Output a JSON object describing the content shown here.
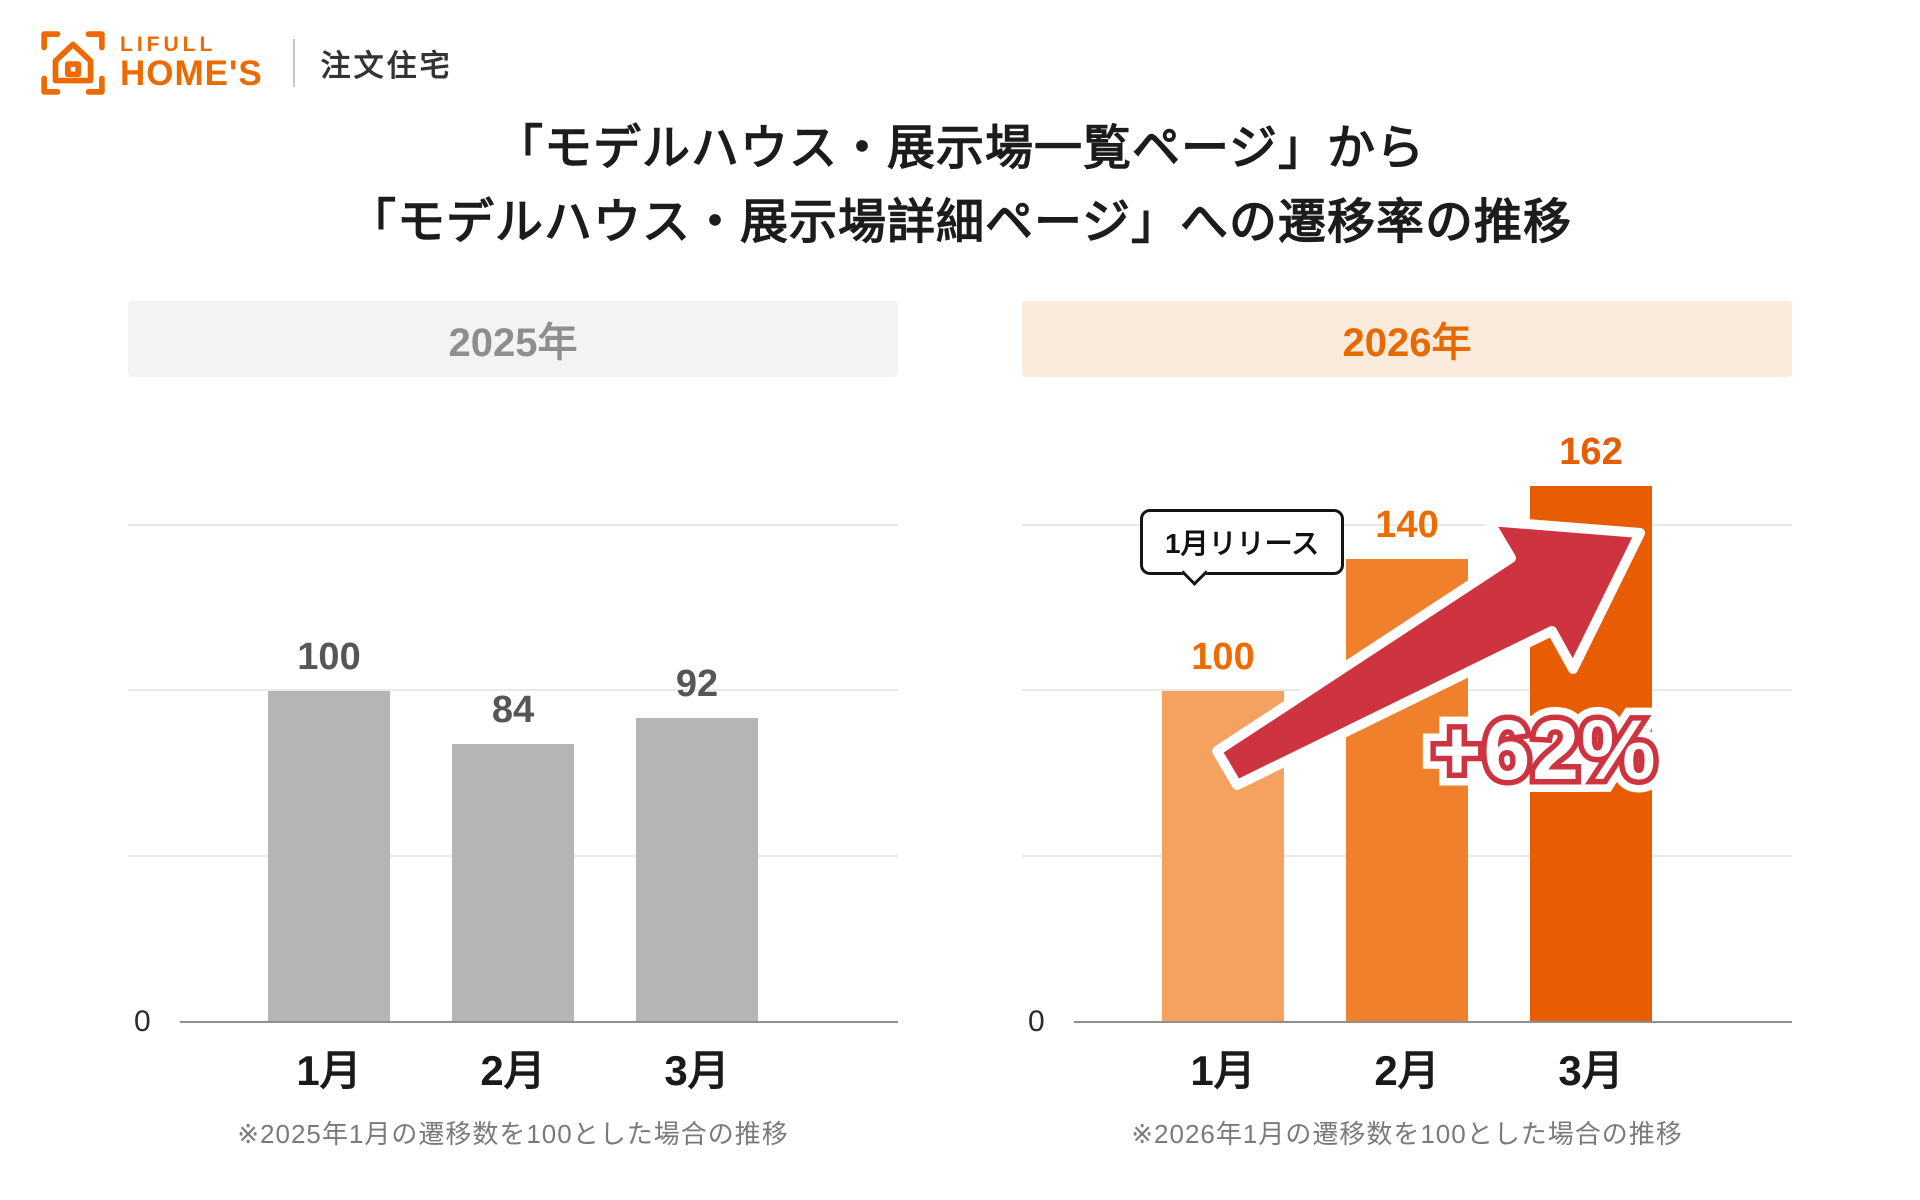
{
  "brand": {
    "name_line1": "LIFULL",
    "name_line2": "HOME'S",
    "service_label": "注文住宅"
  },
  "title": {
    "line1": "「モデルハウス・展示場一覧ページ」から",
    "line2": "「モデルハウス・展示場詳細ページ」への遷移率の推移"
  },
  "colors": {
    "brand_orange": "#EE6A00",
    "arrow_red": "#CE3340",
    "bar_gray": "#B5B5B5",
    "panel_2025_bg": "#F3F3F3",
    "panel_2025_text": "#8E8E8E",
    "panel_2026_bg": "#FBEBDC",
    "panel_2026_text": "#E56A00"
  },
  "chart_data": [
    {
      "type": "bar",
      "title": "2025年",
      "categories": [
        "1月",
        "2月",
        "3月"
      ],
      "values": [
        100,
        84,
        92
      ],
      "ylim": [
        0,
        175
      ],
      "gridlines": [
        50,
        100,
        150
      ],
      "y_zero_label": "0",
      "grid": true,
      "legend_position": "none",
      "bar_colors": [
        "#B5B5B5",
        "#B5B5B5",
        "#B5B5B5"
      ],
      "value_label_colors": [
        "#565656",
        "#565656",
        "#565656"
      ],
      "note": "※2025年1月の遷移数を100とした場合の推移"
    },
    {
      "type": "bar",
      "title": "2026年",
      "categories": [
        "1月",
        "2月",
        "3月"
      ],
      "values": [
        100,
        140,
        162
      ],
      "ylim": [
        0,
        175
      ],
      "gridlines": [
        50,
        100,
        150
      ],
      "y_zero_label": "0",
      "grid": true,
      "legend_position": "none",
      "bar_colors": [
        "#F5A261",
        "#F0802B",
        "#E85C04"
      ],
      "value_label_colors": [
        "#ED6C00",
        "#ED6C00",
        "#E85C04"
      ],
      "annotations": {
        "callout": "1月リリース",
        "growth_label": "+62%"
      },
      "note": "※2026年1月の遷移数を100とした場合の推移"
    }
  ]
}
